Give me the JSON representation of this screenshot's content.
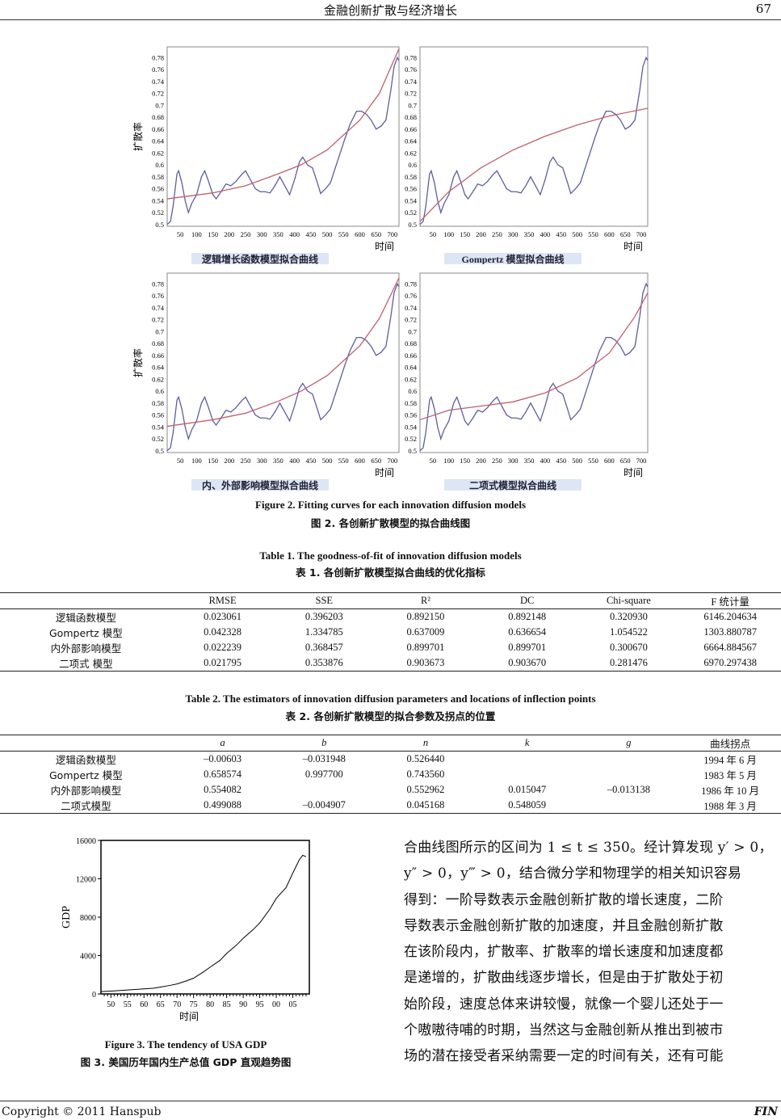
{
  "header": {
    "title": "金融创新扩散与经济增长",
    "page_number": "67"
  },
  "figure2": {
    "caption_en": "Figure 2. Fitting curves for each innovation diffusion models",
    "caption_cn": "图 2.  各创新扩散模型的拟合曲线图",
    "chart_data": [
      {
        "type": "line",
        "title": "逻辑增长函数模型拟合曲线",
        "xlabel": "时间",
        "ylabel": "扩散率",
        "xlim": [
          10,
          720
        ],
        "ylim": [
          0.497,
          0.798
        ],
        "xticks": [
          50,
          100,
          150,
          200,
          250,
          300,
          350,
          400,
          450,
          500,
          550,
          600,
          650,
          700
        ],
        "yticks": [
          "0.5",
          "0.52",
          "0.54",
          "0.56",
          "0.58",
          "0.6",
          "0.62",
          "0.64",
          "0.66",
          "0.68",
          "0.7",
          "0.72",
          "0.74",
          "0.76",
          "0.78"
        ],
        "colors": {
          "observed": "#5a5fa0",
          "fitted": "#c0606a"
        },
        "fitted": {
          "x": [
            10,
            150,
            250,
            350,
            420,
            500,
            600,
            660,
            720
          ],
          "y": [
            0.543,
            0.553,
            0.565,
            0.585,
            0.6,
            0.625,
            0.675,
            0.72,
            0.795
          ]
        }
      },
      {
        "type": "line",
        "title": "Gompertz 模型拟合曲线",
        "xlabel": "时间",
        "ylabel": "",
        "xlim": [
          10,
          720
        ],
        "ylim": [
          0.497,
          0.798
        ],
        "xticks": [
          50,
          100,
          150,
          200,
          250,
          300,
          350,
          400,
          450,
          500,
          550,
          600,
          650,
          700
        ],
        "yticks": [
          "0.5",
          "0.52",
          "0.54",
          "0.56",
          "0.58",
          "0.6",
          "0.62",
          "0.64",
          "0.66",
          "0.68",
          "0.7",
          "0.72",
          "0.74",
          "0.76",
          "0.78"
        ],
        "colors": {
          "observed": "#5a5fa0",
          "fitted": "#c0606a"
        },
        "fitted": {
          "x": [
            10,
            100,
            200,
            300,
            400,
            500,
            600,
            720
          ],
          "y": [
            0.505,
            0.555,
            0.595,
            0.625,
            0.648,
            0.667,
            0.682,
            0.695
          ]
        }
      },
      {
        "type": "line",
        "title": "内、外部影响模型拟合曲线",
        "xlabel": "时间",
        "ylabel": "扩散率",
        "xlim": [
          10,
          720
        ],
        "ylim": [
          0.497,
          0.798
        ],
        "xticks": [
          50,
          100,
          150,
          200,
          250,
          300,
          350,
          400,
          450,
          500,
          550,
          600,
          650,
          700
        ],
        "yticks": [
          "0.5",
          "0.52",
          "0.54",
          "0.56",
          "0.58",
          "0.6",
          "0.62",
          "0.64",
          "0.66",
          "0.68",
          "0.7",
          "0.72",
          "0.74",
          "0.76",
          "0.78"
        ],
        "colors": {
          "observed": "#5a5fa0",
          "fitted": "#c0606a"
        },
        "fitted": {
          "x": [
            10,
            150,
            250,
            350,
            420,
            500,
            600,
            660,
            720
          ],
          "y": [
            0.541,
            0.552,
            0.563,
            0.583,
            0.6,
            0.626,
            0.676,
            0.722,
            0.79
          ]
        }
      },
      {
        "type": "line",
        "title": "二项式模型拟合曲线",
        "xlabel": "时间",
        "ylabel": "",
        "xlim": [
          10,
          720
        ],
        "ylim": [
          0.497,
          0.798
        ],
        "xticks": [
          50,
          100,
          150,
          200,
          250,
          300,
          350,
          400,
          450,
          500,
          550,
          600,
          650,
          700
        ],
        "yticks": [
          "0.5",
          "0.52",
          "0.54",
          "0.56",
          "0.58",
          "0.6",
          "0.62",
          "0.64",
          "0.66",
          "0.68",
          "0.7",
          "0.72",
          "0.74",
          "0.76",
          "0.78"
        ],
        "colors": {
          "observed": "#5a5fa0",
          "fitted": "#c0606a"
        },
        "fitted": {
          "x": [
            10,
            100,
            200,
            300,
            400,
            500,
            600,
            680,
            720
          ],
          "y": [
            0.552,
            0.568,
            0.575,
            0.582,
            0.597,
            0.622,
            0.664,
            0.725,
            0.765
          ]
        }
      }
    ],
    "observed": {
      "x": [
        10,
        20,
        28,
        40,
        45,
        55,
        65,
        75,
        85,
        100,
        115,
        125,
        135,
        150,
        160,
        175,
        190,
        205,
        220,
        240,
        250,
        265,
        280,
        295,
        310,
        325,
        340,
        355,
        370,
        385,
        400,
        415,
        425,
        440,
        455,
        470,
        480,
        495,
        510,
        525,
        540,
        555,
        570,
        590,
        605,
        620,
        635,
        650,
        665,
        680,
        695,
        705,
        715,
        720
      ],
      "y": [
        0.5,
        0.505,
        0.53,
        0.585,
        0.59,
        0.57,
        0.54,
        0.52,
        0.535,
        0.55,
        0.58,
        0.59,
        0.575,
        0.55,
        0.543,
        0.555,
        0.568,
        0.565,
        0.572,
        0.585,
        0.59,
        0.575,
        0.56,
        0.555,
        0.555,
        0.553,
        0.565,
        0.58,
        0.565,
        0.55,
        0.575,
        0.605,
        0.613,
        0.6,
        0.595,
        0.57,
        0.552,
        0.56,
        0.57,
        0.595,
        0.62,
        0.645,
        0.668,
        0.69,
        0.69,
        0.685,
        0.675,
        0.66,
        0.665,
        0.675,
        0.725,
        0.765,
        0.78,
        0.775
      ]
    }
  },
  "table1": {
    "title_en": "Table 1. The goodness-of-fit of innovation diffusion models",
    "title_cn": "表 1.  各创新扩散模型拟合曲线的优化指标",
    "headers": [
      "",
      "RMSE",
      "SSE",
      "R²",
      "DC",
      "Chi-square",
      "F 统计量"
    ],
    "rows": [
      [
        "逻辑函数模型",
        "0.023061",
        "0.396203",
        "0.892150",
        "0.892148",
        "0.320930",
        "6146.204634"
      ],
      [
        "Gompertz  模型",
        "0.042328",
        "1.334785",
        "0.637009",
        "0.636654",
        "1.054522",
        "1303.880787"
      ],
      [
        "内外部影响模型",
        "0.022239",
        "0.368457",
        "0.899701",
        "0.899701",
        "0.300670",
        "6664.884567"
      ],
      [
        "二项式  模型",
        "0.021795",
        "0.353876",
        "0.903673",
        "0.903670",
        "0.281476",
        "6970.297438"
      ]
    ]
  },
  "table2": {
    "title_en": "Table 2. The estimators of innovation diffusion parameters and locations of inflection points",
    "title_cn": "表 2.  各创新扩散模型的拟合参数及拐点的位置",
    "headers": [
      "",
      "a",
      "b",
      "n",
      "k",
      "g",
      "曲线拐点"
    ],
    "rows": [
      [
        "逻辑函数模型",
        "–0.00603",
        "–0.031948",
        "0.526440",
        "",
        "",
        "1994 年 6 月"
      ],
      [
        "Gompertz  模型",
        "0.658574",
        "0.997700",
        "0.743560",
        "",
        "",
        "1983 年 5 月"
      ],
      [
        "内外部影响模型",
        "0.554082",
        "",
        "0.552962",
        "0.015047",
        "–0.013138",
        "1986 年 10 月"
      ],
      [
        "二项式模型",
        "0.499088",
        "–0.004907",
        "0.045168",
        "0.548059",
        "",
        "1988 年 3 月"
      ]
    ]
  },
  "figure3": {
    "caption_en": "Figure 3. The tendency of USA GDP",
    "caption_cn": "图 3.  美国历年国内生产总值 GDP 直观趋势图",
    "chart_data": {
      "type": "line",
      "xlabel": "时间",
      "ylabel": "GDP",
      "xlim": [
        1947,
        2010
      ],
      "ylim": [
        0,
        16000
      ],
      "yticks": [
        0,
        4000,
        8000,
        12000,
        16000
      ],
      "xtick_labels": [
        "50",
        "55",
        "60",
        "65",
        "70",
        "75",
        "80",
        "85",
        "90",
        "95",
        "00",
        "05"
      ],
      "xtick_years": [
        1950,
        1955,
        1960,
        1965,
        1970,
        1975,
        1980,
        1985,
        1990,
        1995,
        2000,
        2005
      ],
      "x": [
        1947,
        1950,
        1955,
        1960,
        1963,
        1965,
        1968,
        1970,
        1973,
        1975,
        1978,
        1980,
        1983,
        1985,
        1988,
        1990,
        1993,
        1995,
        1998,
        2000,
        2003,
        2005,
        2007,
        2008,
        2009
      ],
      "y": [
        240,
        290,
        410,
        530,
        600,
        720,
        900,
        1040,
        1380,
        1640,
        2300,
        2790,
        3500,
        4220,
        5100,
        5800,
        6700,
        7400,
        8800,
        9950,
        11100,
        12600,
        14000,
        14450,
        14300
      ]
    }
  },
  "paragraph": {
    "lines": [
      "合曲线图所示的区间为 1 ≤ t ≤ 350。经计算发现 y′ > 0，",
      "y″ > 0，y‴ > 0，结合微分学和物理学的相关知识容易",
      "得到：一阶导数表示金融创新扩散的增长速度，二阶",
      "导数表示金融创新扩散的加速度，并且金融创新扩散",
      "在该阶段内，扩散率、扩散率的增长速度和加速度都",
      "是递增的，扩散曲线逐步增长，但是由于扩散处于初",
      "始阶段，速度总体来讲较慢，就像一个婴儿还处于一",
      "个嗷嗷待哺的时期，当然这与金融创新从推出到被市",
      "场的潜在接受者采纳需要一定的时间有关，还有可能"
    ]
  },
  "footer": {
    "copyright": "Copyright © 2011 Hanspub",
    "journal": "FIN"
  }
}
